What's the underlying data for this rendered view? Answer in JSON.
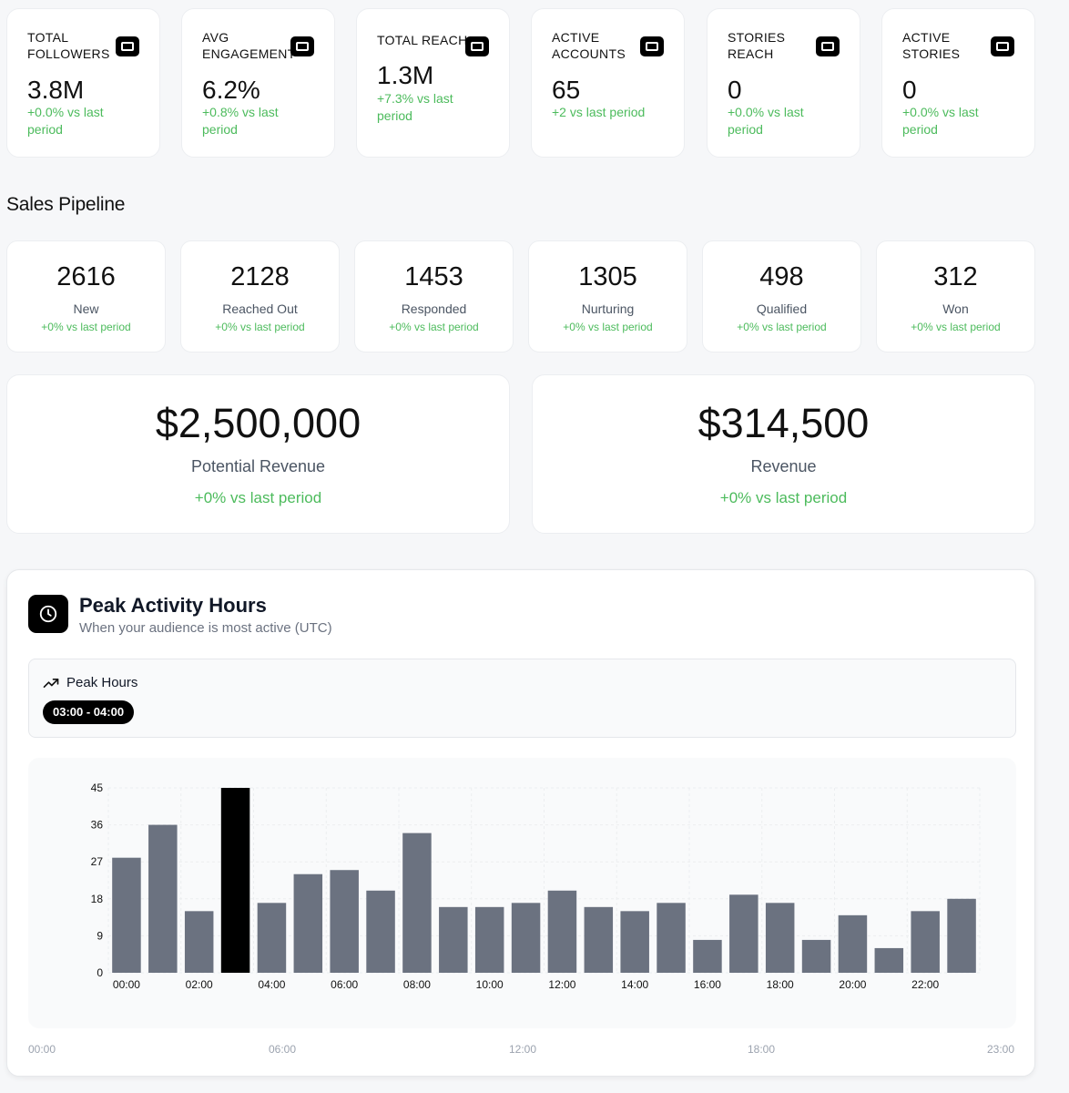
{
  "metrics": [
    {
      "title": "TOTAL FOLLOWERS",
      "value": "3.8M",
      "change": "+0.0% vs last period",
      "icon": "monitor-icon"
    },
    {
      "title": "AVG ENGAGEMENT",
      "value": "6.2%",
      "change": "+0.8% vs last period",
      "icon": "monitor-icon"
    },
    {
      "title": "TOTAL REACH",
      "value": "1.3M",
      "change": "+7.3% vs last period",
      "icon": "monitor-icon"
    },
    {
      "title": "ACTIVE ACCOUNTS",
      "value": "65",
      "change": "+2 vs last period",
      "icon": "monitor-icon"
    },
    {
      "title": "STORIES REACH",
      "value": "0",
      "change": "+0.0% vs last period",
      "icon": "monitor-icon"
    },
    {
      "title": "ACTIVE STORIES",
      "value": "0",
      "change": "+0.0% vs last period",
      "icon": "monitor-icon"
    }
  ],
  "pipeline": {
    "title": "Sales Pipeline",
    "stages": [
      {
        "value": "2616",
        "label": "New",
        "change": "+0% vs last period"
      },
      {
        "value": "2128",
        "label": "Reached Out",
        "change": "+0% vs last period"
      },
      {
        "value": "1453",
        "label": "Responded",
        "change": "+0% vs last period"
      },
      {
        "value": "1305",
        "label": "Nurturing",
        "change": "+0% vs last period"
      },
      {
        "value": "498",
        "label": "Qualified",
        "change": "+0% vs last period"
      },
      {
        "value": "312",
        "label": "Won",
        "change": "+0% vs last period"
      }
    ]
  },
  "revenue": [
    {
      "value": "$2,500,000",
      "label": "Potential Revenue",
      "change": "+0% vs last period"
    },
    {
      "value": "$314,500",
      "label": "Revenue",
      "change": "+0% vs last period"
    }
  ],
  "activity": {
    "title": "Peak Activity Hours",
    "subtitle": "When your audience is most active (UTC)",
    "peak_label": "Peak Hours",
    "peak_range": "03:00 - 04:00",
    "bottom_axis": [
      "00:00",
      "06:00",
      "12:00",
      "18:00",
      "23:00"
    ]
  },
  "colors": {
    "bar": "#6b7280",
    "bar_peak": "#000000",
    "positive": "#4cbb5c"
  },
  "chart_data": {
    "type": "bar",
    "categories": [
      "00:00",
      "01:00",
      "02:00",
      "03:00",
      "04:00",
      "05:00",
      "06:00",
      "07:00",
      "08:00",
      "09:00",
      "10:00",
      "11:00",
      "12:00",
      "13:00",
      "14:00",
      "15:00",
      "16:00",
      "17:00",
      "18:00",
      "19:00",
      "20:00",
      "21:00",
      "22:00",
      "23:00"
    ],
    "values": [
      28,
      36,
      15,
      45,
      17,
      24,
      25,
      20,
      34,
      16,
      16,
      17,
      20,
      16,
      15,
      17,
      8,
      19,
      17,
      8,
      14,
      6,
      15,
      18
    ],
    "highlight_index": 3,
    "yticks": [
      0,
      9,
      18,
      27,
      36,
      45
    ],
    "xtick_labels": [
      "00:00",
      "02:00",
      "04:00",
      "06:00",
      "08:00",
      "10:00",
      "12:00",
      "14:00",
      "16:00",
      "18:00",
      "20:00",
      "22:00"
    ],
    "ylim": [
      0,
      45
    ],
    "grid": true,
    "title": "",
    "xlabel": "",
    "ylabel": ""
  }
}
